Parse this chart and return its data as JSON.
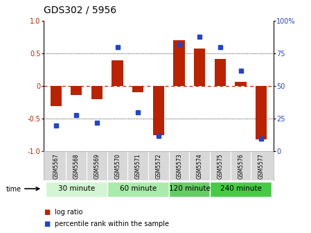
{
  "title": "GDS302 / 5956",
  "samples": [
    "GSM5567",
    "GSM5568",
    "GSM5569",
    "GSM5570",
    "GSM5571",
    "GSM5572",
    "GSM5573",
    "GSM5574",
    "GSM5575",
    "GSM5576",
    "GSM5577"
  ],
  "log_ratio": [
    -0.3,
    -0.13,
    -0.2,
    0.4,
    -0.09,
    -0.75,
    0.7,
    0.58,
    0.42,
    0.07,
    -0.82
  ],
  "percentile": [
    20,
    28,
    22,
    80,
    30,
    12,
    82,
    88,
    80,
    62,
    10
  ],
  "groups": [
    {
      "label": "30 minute",
      "start": 0,
      "end": 3,
      "color": "#d4f5d4"
    },
    {
      "label": "60 minute",
      "start": 3,
      "end": 6,
      "color": "#aaeaaa"
    },
    {
      "label": "120 minute",
      "start": 6,
      "end": 8,
      "color": "#66cc66"
    },
    {
      "label": "240 minute",
      "start": 8,
      "end": 11,
      "color": "#44cc44"
    }
  ],
  "bar_color": "#bb2200",
  "dot_color": "#2244cc",
  "zero_line_color": "#cc2200",
  "ylim_left": [
    -1.0,
    1.0
  ],
  "ylim_right": [
    0,
    100
  ],
  "yticks_left": [
    -1.0,
    -0.5,
    0.0,
    0.5,
    1.0
  ],
  "yticks_right": [
    0,
    25,
    50,
    75,
    100
  ],
  "hlines_dotted": [
    0.5,
    -0.5
  ],
  "title_fontsize": 10,
  "tick_fontsize": 7,
  "sample_fontsize": 5.5,
  "group_fontsize": 7.5,
  "legend_fontsize": 7,
  "bar_width": 0.55
}
